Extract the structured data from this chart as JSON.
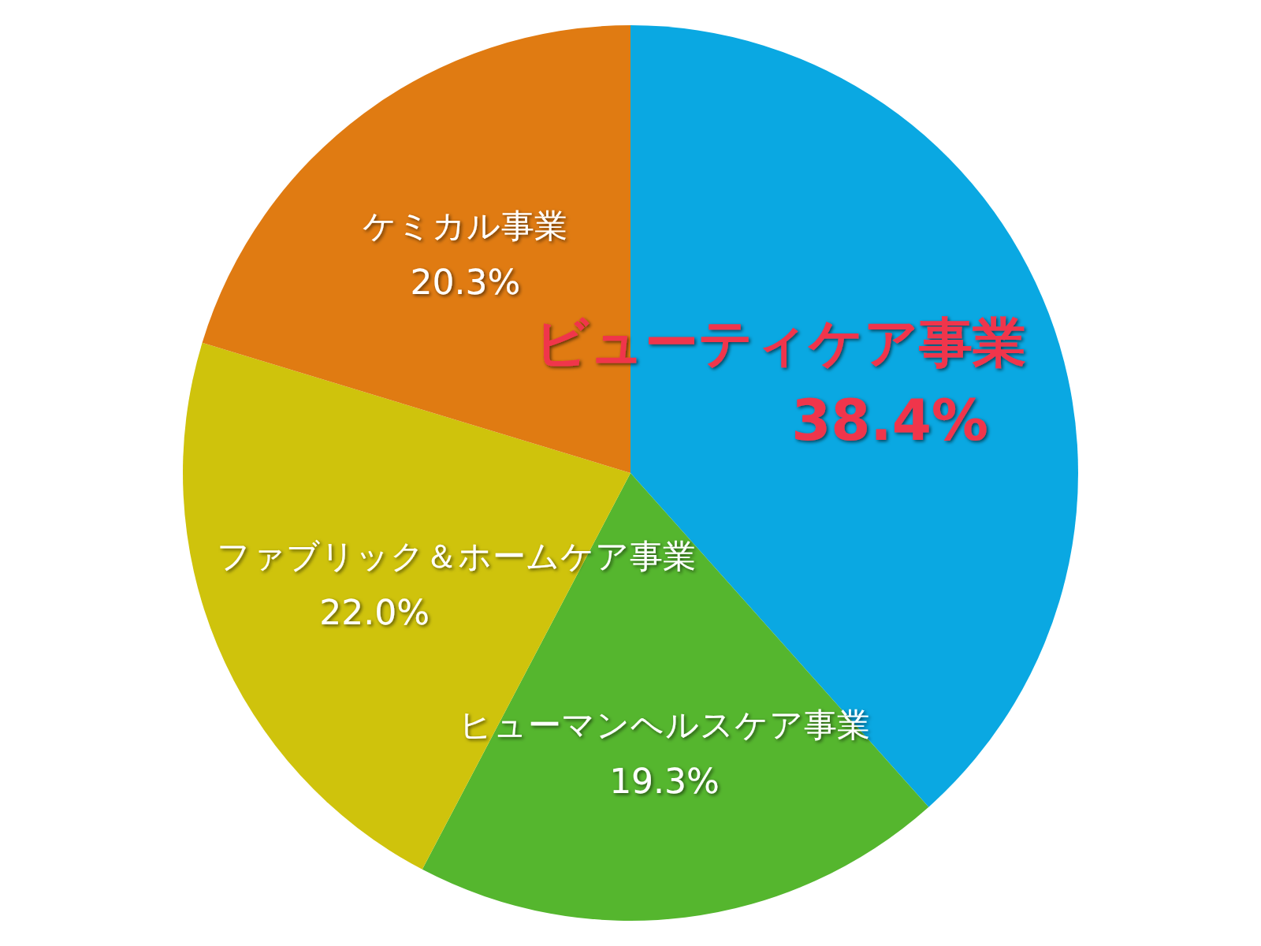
{
  "chart_data": {
    "type": "pie",
    "categories": [
      "ビューティケア事業",
      "ヒューマンヘルスケア事業",
      "ファブリック＆ホームケア事業",
      "ケミカル事業"
    ],
    "values": [
      38.4,
      19.3,
      22.0,
      20.3
    ],
    "value_labels": [
      "38.4%",
      "19.3%",
      "22.0%",
      "20.3%"
    ],
    "colors": [
      "#0aa8e2",
      "#55b62e",
      "#cfc30c",
      "#e07b12"
    ]
  }
}
